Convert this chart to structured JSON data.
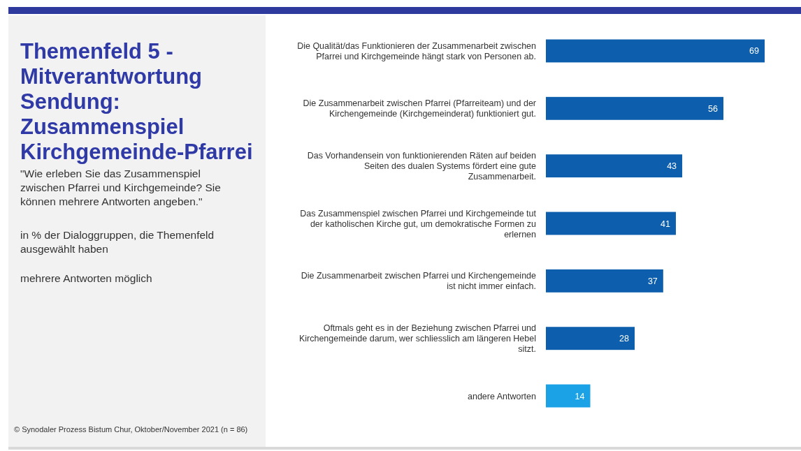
{
  "chart_data": {
    "type": "bar",
    "orientation": "horizontal",
    "title": "Themenfeld 5 - Mitverantwortung Sendung: Zusammenspiel Kirchgemeinde-Pfarrei",
    "subtitle": "\"Wie erleben Sie das Zusammenspiel zwischen Pfarrei und Kirchgemeinde? Sie können mehrere Antworten angeben.\"",
    "categories": [
      "Die Qualität/das Funktionieren der Zusammenarbeit zwischen Pfarrei und Kirchgemeinde hängt stark von Personen ab.",
      "Die Zusammenarbeit zwischen Pfarrei (Pfarreiteam) und der Kirchengemeinde (Kirchgemeinderat) funktioniert gut.",
      "Das Vorhandensein von funktionierenden Räten auf beiden Seiten des dualen Systems fördert eine gute Zusammenarbeit.",
      "Das Zusammenspiel zwischen Pfarrei und Kirchgemeinde tut der katholischen Kirche gut, um demokratische Formen zu erlernen",
      "Die Zusammenarbeit zwischen Pfarrei und Kirchengemeinde ist nicht immer einfach.",
      "Oftmals geht es in der Beziehung zwischen Pfarrei und Kirchengemeinde darum, wer schliesslich am längeren Hebel sitzt.",
      "andere Antworten"
    ],
    "values": [
      69,
      56,
      43,
      41,
      37,
      28,
      14
    ],
    "colors": [
      "#0d5fae",
      "#0d5fae",
      "#0d5fae",
      "#0d5fae",
      "#0d5fae",
      "#0d5fae",
      "#1ba1e6"
    ],
    "data_labels": true,
    "annotations": [
      "in % der Dialoggruppen, die Themenfeld ausgewählt haben",
      "mehrere Antworten möglich",
      "© Synodaler Prozess Bistum Chur, Oktober/November 2021 (n = 86)"
    ]
  }
}
